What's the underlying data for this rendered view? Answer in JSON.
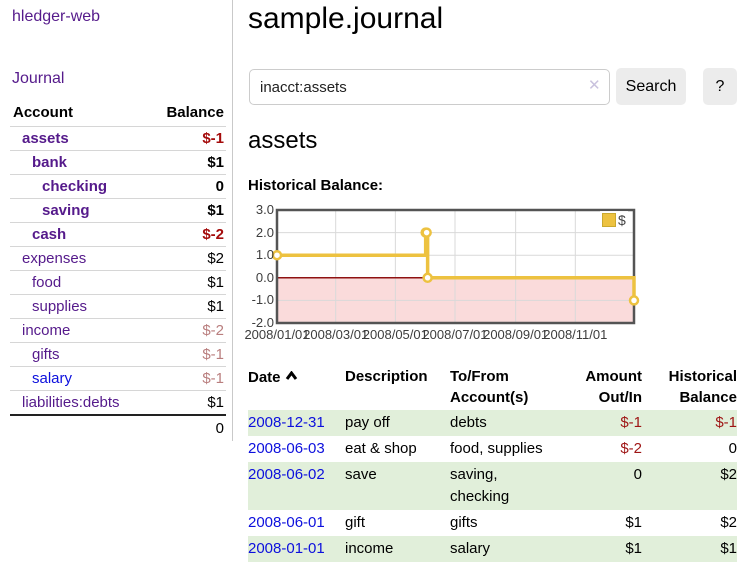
{
  "app": {
    "brand": "hledger-web"
  },
  "sidebar": {
    "journal_link": "Journal",
    "accounts_table": {
      "account_header": "Account",
      "balance_header": "Balance",
      "rows": [
        {
          "account": "assets",
          "balance": "$-1"
        },
        {
          "account": "bank",
          "balance": "$1"
        },
        {
          "account": "checking",
          "balance": "0"
        },
        {
          "account": "saving",
          "balance": "$1"
        },
        {
          "account": "cash",
          "balance": "$-2"
        },
        {
          "account": "expenses",
          "balance": "$2"
        },
        {
          "account": "food",
          "balance": "$1"
        },
        {
          "account": "supplies",
          "balance": "$1"
        },
        {
          "account": "income",
          "balance": "$-2"
        },
        {
          "account": "gifts",
          "balance": "$-1"
        },
        {
          "account": "salary",
          "balance": "$-1"
        },
        {
          "account": "liabilities:debts",
          "balance": "$1"
        }
      ],
      "total": "0"
    }
  },
  "main": {
    "title": "sample.journal",
    "search": {
      "value": "inacct:assets",
      "clear_icon": "✕",
      "search_button": "Search",
      "help_button": "?"
    },
    "account_heading": "assets",
    "chart_heading": "Historical Balance:"
  },
  "chart_data": {
    "type": "line",
    "title": "Historical Balance",
    "step": true,
    "x": [
      "2008-01-01",
      "2008-06-01",
      "2008-06-02",
      "2008-06-03",
      "2008-12-31"
    ],
    "series": [
      {
        "name": "$",
        "values": [
          1,
          2,
          2,
          0,
          -1
        ],
        "color": "#edc240"
      }
    ],
    "legend": [
      {
        "label": "$"
      }
    ],
    "legend_position": "top-right",
    "ylim": [
      -2,
      3
    ],
    "yticks": [
      3,
      2,
      1,
      0,
      -1,
      -2
    ],
    "xlim": [
      "2008-01-01",
      "2008-12-31"
    ],
    "xtick_labels": [
      "2008/01/01",
      "2008/03/01",
      "2008/05/01",
      "2008/07/01",
      "2008/09/01",
      "2008/11/01"
    ],
    "grid": true,
    "grid_color": "#d9d9d9",
    "negative_region_color": "#fadbdb",
    "zero_line_color": "#8f1212",
    "border_color": "#545454"
  },
  "register": {
    "headers": {
      "date": "Date",
      "description": "Description",
      "accounts": "To/From Account(s)",
      "amount": "Amount Out/In",
      "balance": "Historical Balance"
    },
    "rows": [
      {
        "date": "2008-12-31",
        "description": "pay off",
        "accounts": "debts",
        "amount": "$-1",
        "balance": "$-1"
      },
      {
        "date": "2008-06-03",
        "description": "eat & shop",
        "accounts": "food, supplies",
        "amount": "$-2",
        "balance": "0"
      },
      {
        "date": "2008-06-02",
        "description": "save",
        "accounts": "saving, checking",
        "amount": "0",
        "balance": "$2"
      },
      {
        "date": "2008-06-01",
        "description": "gift",
        "accounts": "gifts",
        "amount": "$1",
        "balance": "$2"
      },
      {
        "date": "2008-01-01",
        "description": "income",
        "accounts": "salary",
        "amount": "$1",
        "balance": "$1"
      }
    ]
  }
}
